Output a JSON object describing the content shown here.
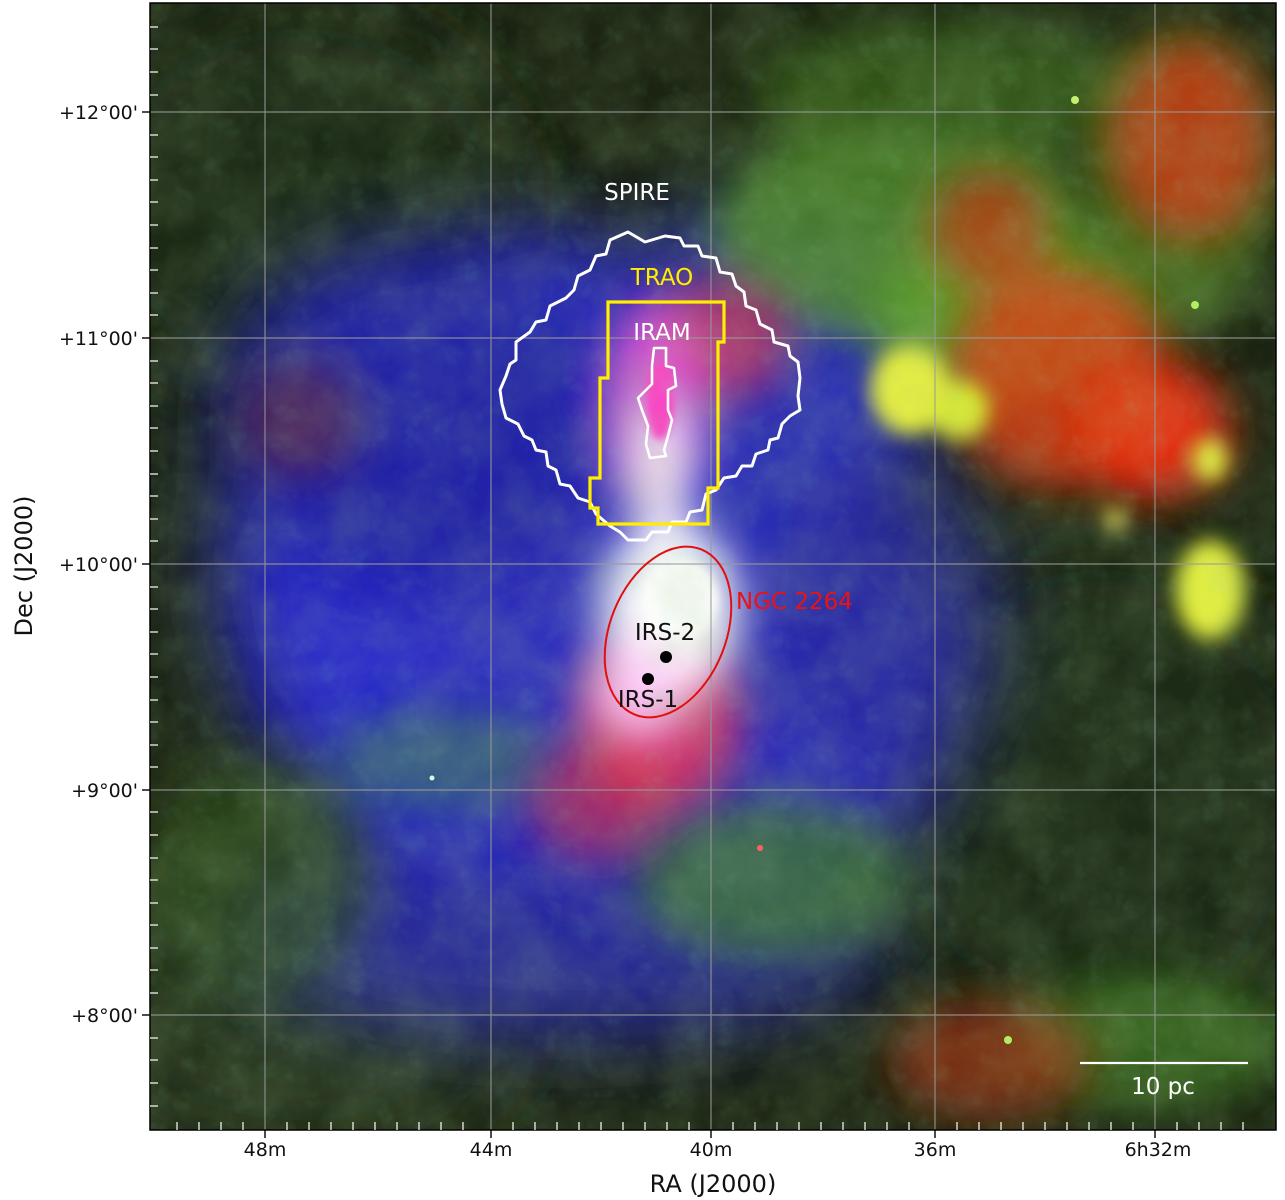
{
  "axes": {
    "xlabel": "RA (J2000)",
    "ylabel": "Dec (J2000)",
    "x_ticks": [
      "48m",
      "44m",
      "40m",
      "36m",
      "6h32m"
    ],
    "y_ticks": [
      "+12°00'",
      "+11°00'",
      "+10°00'",
      "+9°00'",
      "+8°00'"
    ]
  },
  "regions": {
    "spire": {
      "label": "SPIRE",
      "color": "#ffffff"
    },
    "trao": {
      "label": "TRAO",
      "color": "#ffee00"
    },
    "iram": {
      "label": "IRAM",
      "color": "#ffffff"
    },
    "ngc": {
      "label": "NGC 2264",
      "color": "#ee1111"
    }
  },
  "sources": {
    "irs2": {
      "label": "IRS-2"
    },
    "irs1": {
      "label": "IRS-1"
    }
  },
  "scalebar": {
    "label": "10 pc"
  },
  "colors": {
    "blue_emission": "#2a2aff",
    "green_emission": "#7fd43a",
    "red_emission": "#ff3a1a",
    "background": "#1b2412"
  }
}
